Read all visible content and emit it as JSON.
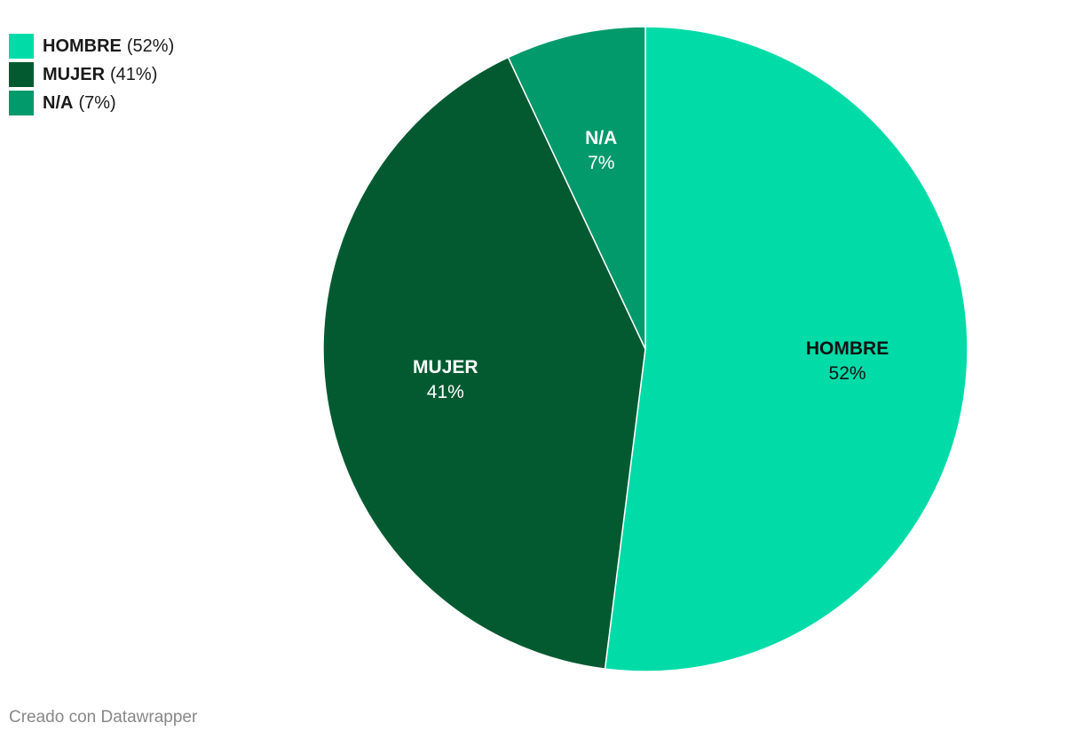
{
  "chart_data": {
    "type": "pie",
    "categories": [
      "HOMBRE",
      "MUJER",
      "N/A"
    ],
    "values": [
      52,
      41,
      7
    ],
    "value_labels": [
      "52%",
      "41%",
      "7%"
    ],
    "legend_value_labels": [
      "(52%)",
      "(41%)",
      "(7%)"
    ],
    "colors": [
      "#00dba8",
      "#035a30",
      "#029a6a"
    ],
    "legend": "top-left",
    "footer": "Creado con Datawrapper"
  }
}
